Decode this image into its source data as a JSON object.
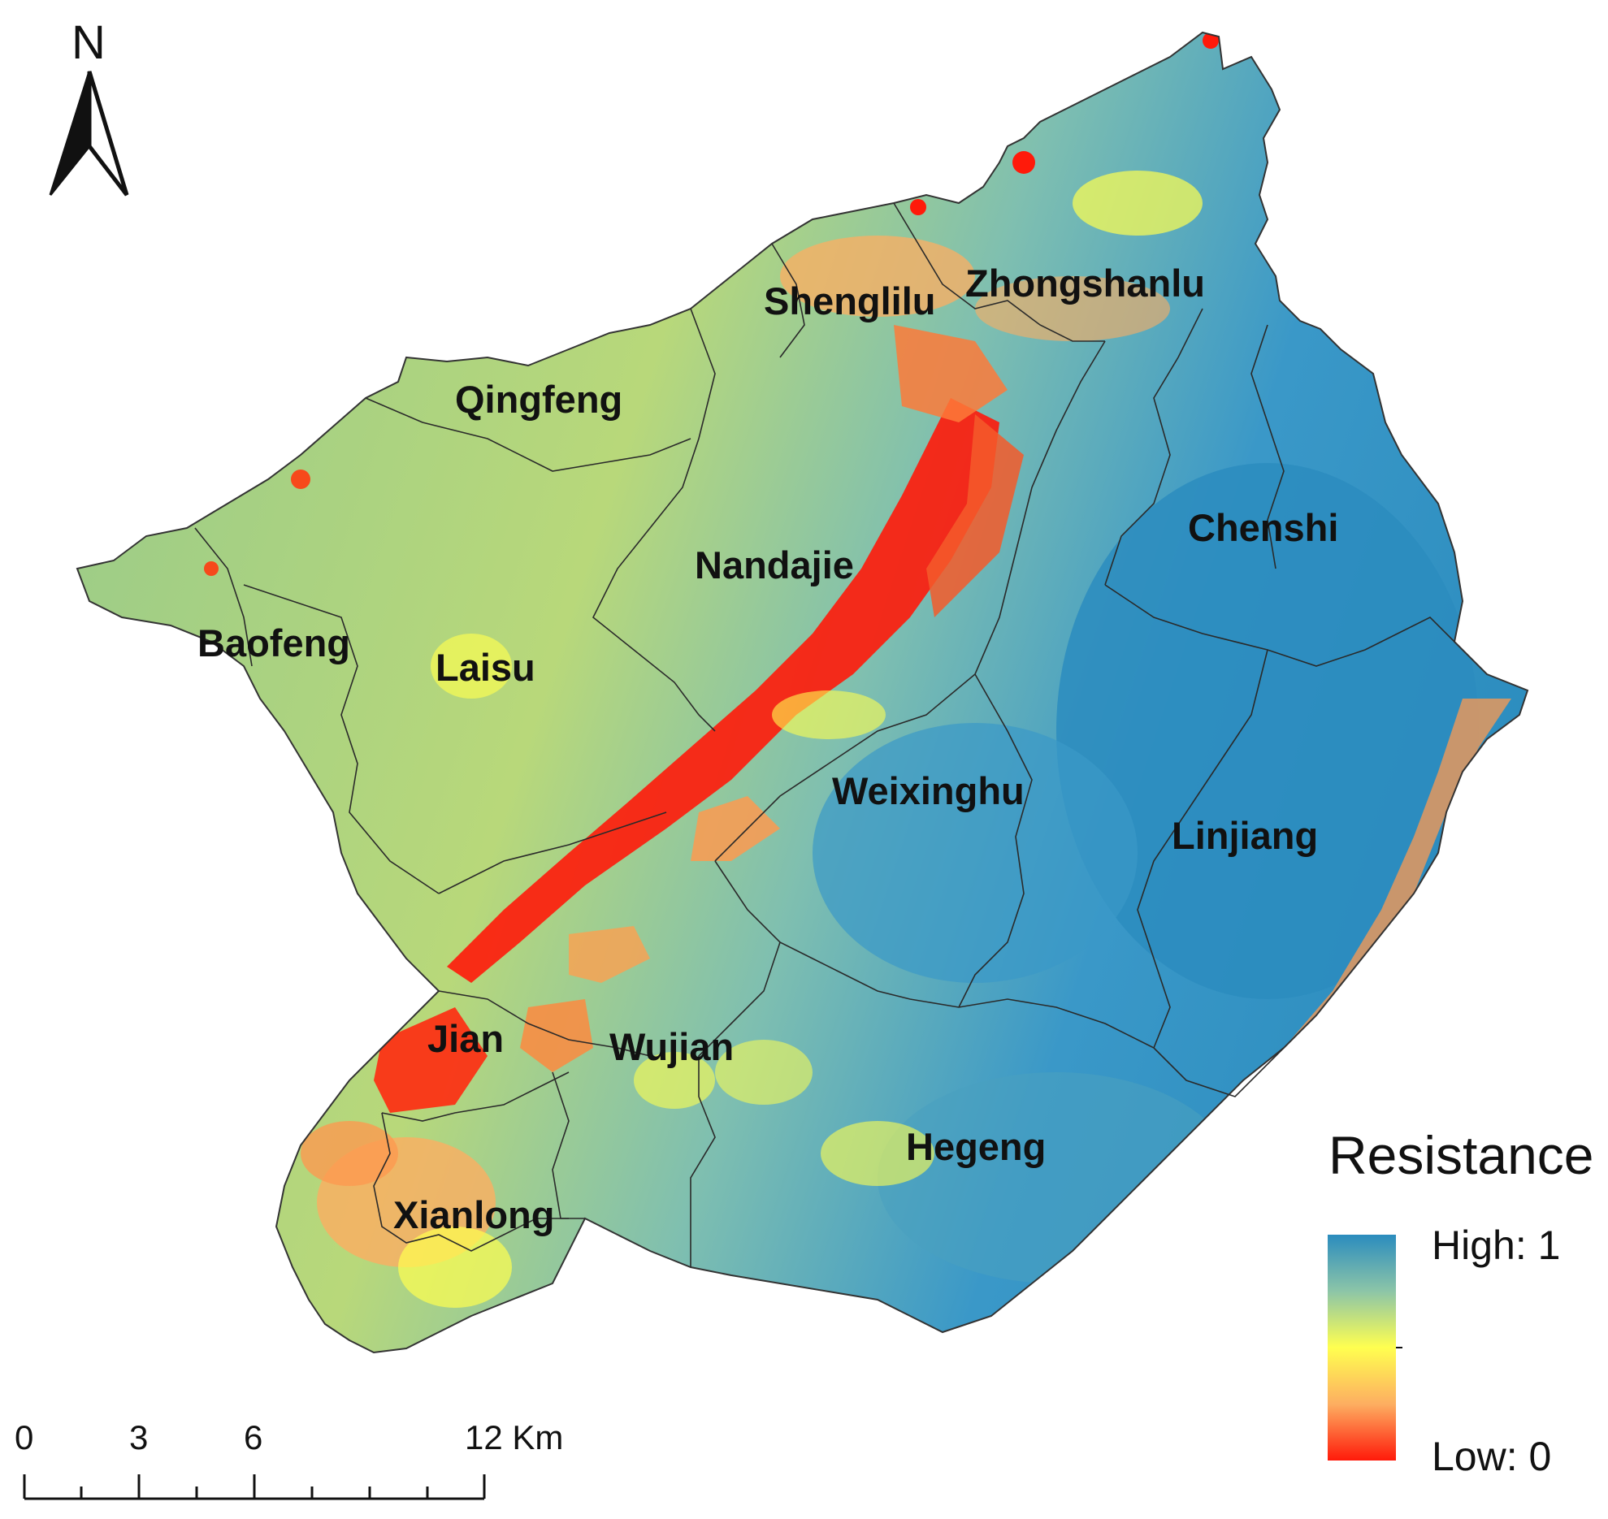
{
  "north_arrow": {
    "label": "N"
  },
  "towns": [
    {
      "id": "shenglilu",
      "name": "Shenglilu"
    },
    {
      "id": "zhongshanlu",
      "name": "Zhongshanlu"
    },
    {
      "id": "qingfeng",
      "name": "Qingfeng"
    },
    {
      "id": "chenshi",
      "name": "Chenshi"
    },
    {
      "id": "nandajie",
      "name": "Nandajie"
    },
    {
      "id": "baofeng",
      "name": "Baofeng"
    },
    {
      "id": "laisu",
      "name": "Laisu"
    },
    {
      "id": "weixinghu",
      "name": "Weixinghu"
    },
    {
      "id": "linjiang",
      "name": "Linjiang"
    },
    {
      "id": "jian",
      "name": "Jian"
    },
    {
      "id": "wujian",
      "name": "Wujian"
    },
    {
      "id": "hegeng",
      "name": "Hegeng"
    },
    {
      "id": "xianlong",
      "name": "Xianlong"
    }
  ],
  "legend": {
    "title": "Resistance",
    "high_label": "High: 1",
    "low_label": "Low: 0",
    "colors": {
      "high": "#2b8cbe",
      "mid_high": "#8cc5a8",
      "mid": "#ffff50",
      "mid_low": "#fdae61",
      "low": "#ff1a0a"
    }
  },
  "scale_bar": {
    "ticks": [
      "0",
      "3",
      "6",
      "12 Km"
    ]
  }
}
